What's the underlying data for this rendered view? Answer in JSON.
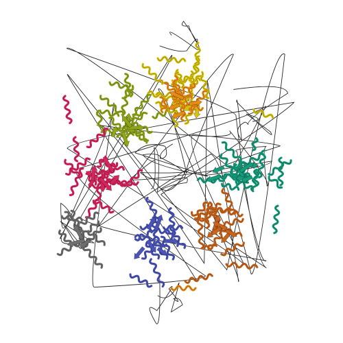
{
  "image": {
    "kind": "protein-ribbon-structure",
    "background": "#ffffff",
    "coil_color": "#2a2a2a",
    "symmetry": "six-fold",
    "subunits": [
      {
        "name": "olive-subunit",
        "color": "#8fa61a"
      },
      {
        "name": "yellow-subunit",
        "color": "#d7c20b"
      },
      {
        "name": "orange-subunit",
        "color": "#e88b12"
      },
      {
        "name": "teal-subunit",
        "color": "#169b7b"
      },
      {
        "name": "brown-orange-subunit",
        "color": "#c8641c"
      },
      {
        "name": "blue-subunit",
        "color": "#4a54b8"
      },
      {
        "name": "magenta-subunit",
        "color": "#d8245e"
      },
      {
        "name": "grey-subunit",
        "color": "#6f6f6f"
      }
    ]
  }
}
